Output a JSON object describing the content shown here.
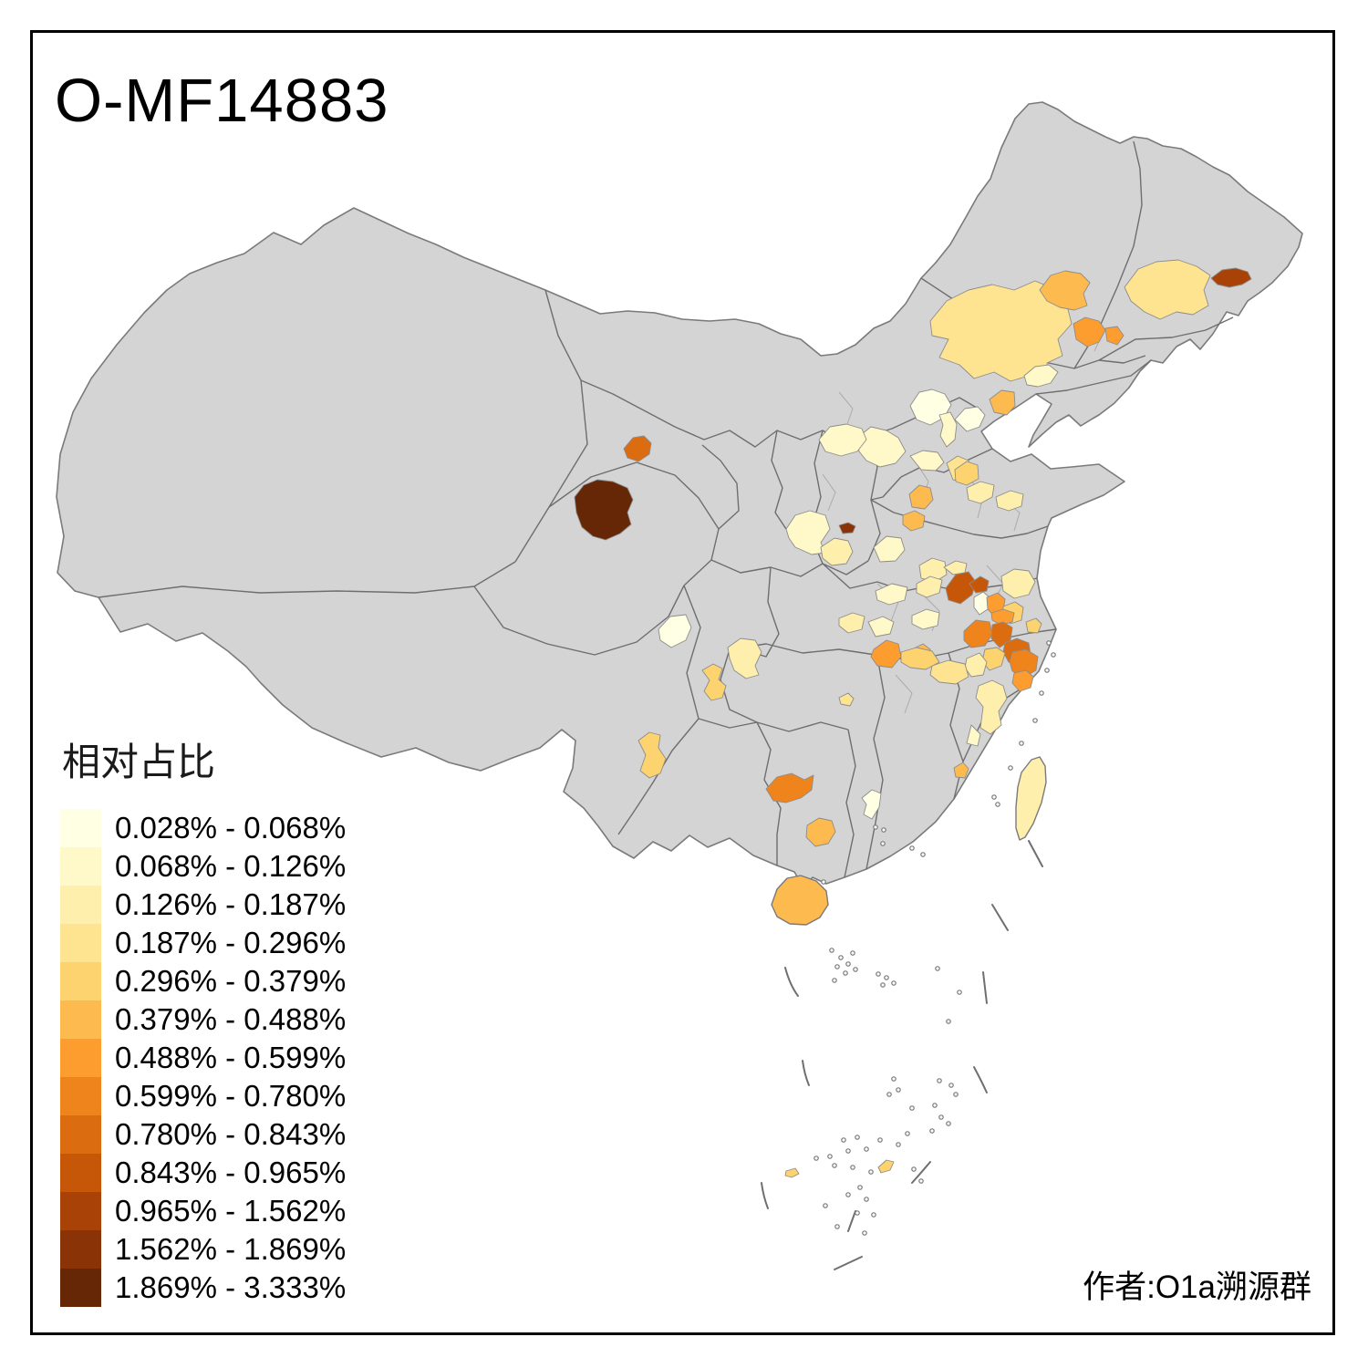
{
  "title": "O-MF14883",
  "attribution": "作者:O1a溯源群",
  "legend": {
    "title": "相对占比",
    "entries": [
      {
        "label": "0.028% - 0.068%",
        "color": "#FFFFE3"
      },
      {
        "label": "0.068% - 0.126%",
        "color": "#FFF8C8"
      },
      {
        "label": "0.126% - 0.187%",
        "color": "#FEEFAC"
      },
      {
        "label": "0.187% - 0.296%",
        "color": "#FEE391"
      },
      {
        "label": "0.296% - 0.379%",
        "color": "#FDD36F"
      },
      {
        "label": "0.379% - 0.488%",
        "color": "#FDBB4F"
      },
      {
        "label": "0.488% - 0.599%",
        "color": "#FD9D30"
      },
      {
        "label": "0.599% - 0.780%",
        "color": "#F0841C"
      },
      {
        "label": "0.780% - 0.843%",
        "color": "#DC6C10"
      },
      {
        "label": "0.843% - 0.965%",
        "color": "#C65708"
      },
      {
        "label": "0.965% - 1.562%",
        "color": "#A84206"
      },
      {
        "label": "1.562% - 1.869%",
        "color": "#8A3306"
      },
      {
        "label": "1.869% - 3.333%",
        "color": "#652706"
      }
    ]
  },
  "map": {
    "background": "#FFFFFF",
    "frame_color": "#000000",
    "land_fill": "#D4D4D4",
    "country_outline": "#7A7A7A",
    "province_border": "#6E6E6E",
    "prefecture_border": "#ABABAB",
    "no_data_meaning": "gray",
    "value_metric": "相对占比"
  }
}
